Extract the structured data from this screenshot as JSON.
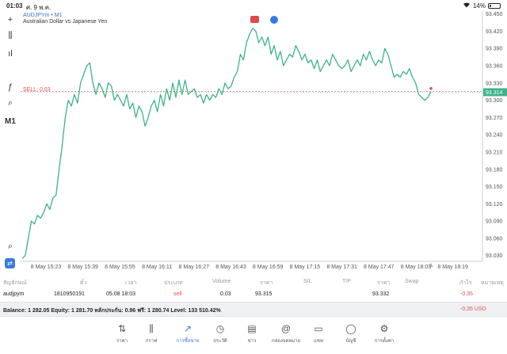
{
  "status_bar": {
    "time": "01:03",
    "date": "ศ. 9 พ.ค.",
    "battery": "14%",
    "battery_level": 0.14
  },
  "toolbar": {
    "items": [
      {
        "name": "crosshair-icon",
        "glyph": "+"
      },
      {
        "name": "candlestick-icon",
        "glyph": "⫼"
      },
      {
        "name": "indicators-icon",
        "glyph": "ıl"
      },
      {
        "name": "function-icon",
        "glyph": "ƒ"
      },
      {
        "name": "objects-icon",
        "glyph": "⌕"
      },
      {
        "name": "timeframe",
        "glyph": "M1"
      }
    ],
    "bottom": [
      {
        "name": "search-chart-icon",
        "glyph": "⌕"
      },
      {
        "name": "trade-icon",
        "glyph": "⇄"
      }
    ]
  },
  "chart": {
    "symbol": "AUDJPYm • M1",
    "description": "Australian Dollar vs Japanese Yen",
    "sell_label": "SELL: 0.03",
    "current_price": "93.314",
    "colors": {
      "line": "#3cb38a",
      "sell": "#e05050",
      "price_tag": "#3cb38a"
    },
    "indicators": [
      {
        "name": "indicator-red-icon",
        "color": "#e04a4a"
      },
      {
        "name": "indicator-blue-icon",
        "color": "#3a7ae0"
      }
    ]
  },
  "chart_data": {
    "type": "line",
    "x_ticks": [
      "8 May 15:23",
      "8 May 15:39",
      "8 May 15:55",
      "8 May 16:11",
      "8 May 16:27",
      "8 May 16:43",
      "8 May 16:59",
      "8 May 17:15",
      "8 May 17:31",
      "8 May 17:47",
      "8 May 18:03",
      "8 May 18:19"
    ],
    "y_ticks": [
      "93.450",
      "93.420",
      "93.390",
      "93.360",
      "93.330",
      "93.300",
      "93.270",
      "93.240",
      "93.210",
      "93.180",
      "93.150",
      "93.120",
      "93.090",
      "93.060",
      "93.030"
    ],
    "ylim": [
      93.02,
      93.455
    ],
    "sell_level": 93.315,
    "current_price": 93.314,
    "values": [
      93.025,
      93.03,
      93.06,
      93.09,
      93.085,
      93.1,
      93.095,
      93.105,
      93.12,
      93.11,
      93.13,
      93.135,
      93.18,
      93.22,
      93.27,
      93.3,
      93.29,
      93.31,
      93.295,
      93.33,
      93.345,
      93.36,
      93.365,
      93.33,
      93.31,
      93.33,
      93.32,
      93.305,
      93.33,
      93.325,
      93.3,
      93.31,
      93.3,
      93.29,
      93.31,
      93.285,
      93.295,
      93.27,
      93.29,
      93.28,
      93.255,
      93.27,
      93.29,
      93.3,
      93.28,
      93.31,
      93.29,
      93.32,
      93.3,
      93.33,
      93.305,
      93.335,
      93.31,
      93.335,
      93.31,
      93.315,
      93.32,
      93.305,
      93.31,
      93.295,
      93.31,
      93.3,
      93.31,
      93.305,
      93.32,
      93.31,
      93.33,
      93.32,
      93.325,
      93.34,
      93.35,
      93.38,
      93.37,
      93.4,
      93.415,
      93.425,
      93.42,
      93.4,
      93.41,
      93.395,
      93.41,
      93.38,
      93.395,
      93.37,
      93.385,
      93.36,
      93.37,
      93.38,
      93.375,
      93.395,
      93.385,
      93.37,
      93.38,
      93.365,
      93.37,
      93.355,
      93.37,
      93.35,
      93.36,
      93.37,
      93.36,
      93.38,
      93.37,
      93.36,
      93.355,
      93.36,
      93.37,
      93.35,
      93.36,
      93.37,
      93.36,
      93.38,
      93.37,
      93.385,
      93.37,
      93.36,
      93.37,
      93.365,
      93.39,
      93.38,
      93.36,
      93.34,
      93.345,
      93.34,
      93.35,
      93.345,
      93.355,
      93.34,
      93.33,
      93.31,
      93.305,
      93.3,
      93.305,
      93.315
    ]
  },
  "positions": {
    "headers": [
      "สัญลักษณ์",
      "ตั๋ว",
      "เวลา",
      "ประเภท",
      "Volume",
      "ราคา",
      "S/L",
      "T/P",
      "ราคา",
      "Swap",
      "กำไร",
      "หมายเหตุ"
    ],
    "row": {
      "symbol": "audjpym",
      "ticket": "1810950191",
      "time": "05.08 18:03",
      "type": "sell",
      "volume": "0.03",
      "open_price": "93.315",
      "sl": "",
      "tp": "",
      "price": "93.332",
      "swap": "",
      "profit": "-0.35",
      "comment": ""
    }
  },
  "balance": {
    "text": "Balance: 1 282.05 Equity: 1 281.70 หลักประกัน: 0.96 ฟรี: 1 280.74 Level: 133 510.42%",
    "profit": "-0.35",
    "currency": "USD"
  },
  "tabs": [
    {
      "name": "tab-quotes",
      "icon": "⇅",
      "label": "ราคา"
    },
    {
      "name": "tab-chart",
      "icon": "⫼",
      "label": "กราฟ"
    },
    {
      "name": "tab-trade",
      "icon": "↗",
      "label": "การซื้อขาย",
      "active": true
    },
    {
      "name": "tab-history",
      "icon": "◷",
      "label": "ประวัติ"
    },
    {
      "name": "tab-news",
      "icon": "▤",
      "label": "ข่าว"
    },
    {
      "name": "tab-mailbox",
      "icon": "@",
      "label": "กล่องจดหมาย"
    },
    {
      "name": "tab-chat",
      "icon": "▭",
      "label": "แชท"
    },
    {
      "name": "tab-account",
      "icon": "◯",
      "label": "บัญชี"
    },
    {
      "name": "tab-settings",
      "icon": "⚙",
      "label": "การตั้งค่า"
    }
  ]
}
